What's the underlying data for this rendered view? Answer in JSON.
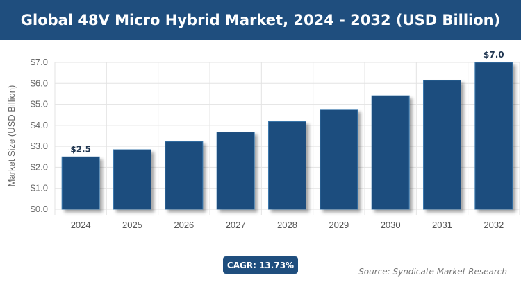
{
  "header": {
    "title": "Global 48V Micro Hybrid Market, 2024 - 2032 (USD Billion)"
  },
  "chart_data": {
    "type": "bar",
    "title": "Global 48V Micro Hybrid Market, 2024 - 2032 (USD Billion)",
    "ylabel": "Market Size (USD Billion)",
    "xlabel": "",
    "categories": [
      "2024",
      "2025",
      "2026",
      "2027",
      "2028",
      "2029",
      "2030",
      "2031",
      "2032"
    ],
    "values": [
      2.5,
      2.84,
      3.23,
      3.68,
      4.18,
      4.76,
      5.41,
      6.15,
      7.0
    ],
    "data_labels": {
      "0": "$2.5",
      "8": "$7.0"
    },
    "ylim": [
      0,
      7
    ],
    "yticks": [
      "$0.0",
      "$1.0",
      "$2.0",
      "$3.0",
      "$4.0",
      "$5.0",
      "$6.0",
      "$7.0"
    ],
    "grid": true,
    "bar_color": "#1f4e7e"
  },
  "footer": {
    "cagr": "CAGR: 13.73%",
    "source": "Source: Syndicate Market Research"
  }
}
